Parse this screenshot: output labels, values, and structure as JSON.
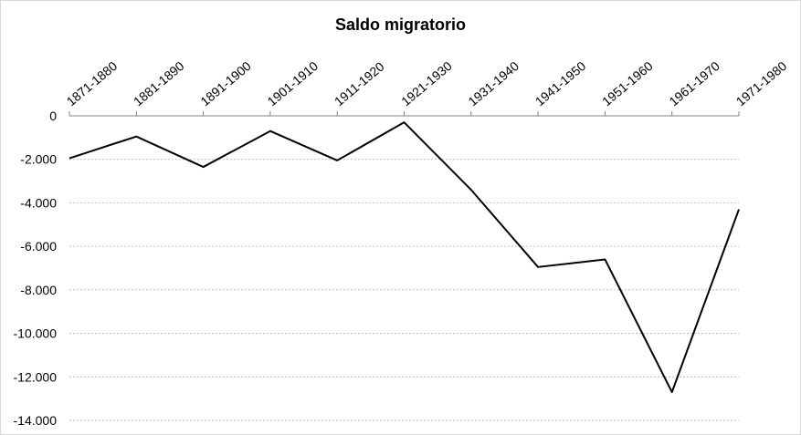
{
  "chart_data": {
    "type": "line",
    "title": "Saldo migratorio",
    "xlabel": "",
    "ylabel": "",
    "categories": [
      "1871-1880",
      "1881-1890",
      "1891-1900",
      "1901-1910",
      "1911-1920",
      "1921-1930",
      "1931-1940",
      "1941-1950",
      "1951-1960",
      "1961-1970",
      "1971-1980"
    ],
    "series": [
      {
        "values": [
          -1950,
          -950,
          -2350,
          -700,
          -2050,
          -300,
          -3400,
          -6950,
          -6600,
          -12700,
          -4300
        ]
      }
    ],
    "ylim": [
      -14000,
      0
    ],
    "y_ticks": [
      0,
      -2000,
      -4000,
      -6000,
      -8000,
      -10000,
      -12000,
      -14000
    ],
    "y_tick_labels": [
      "0",
      "-2.000",
      "-4.000",
      "-6.000",
      "-8.000",
      "-10.000",
      "-12.000",
      "-14.000"
    ],
    "x_axis_position": "top",
    "grid": true,
    "legend": "none",
    "line_color": "#000000",
    "grid_color": "#bfbfbf"
  }
}
